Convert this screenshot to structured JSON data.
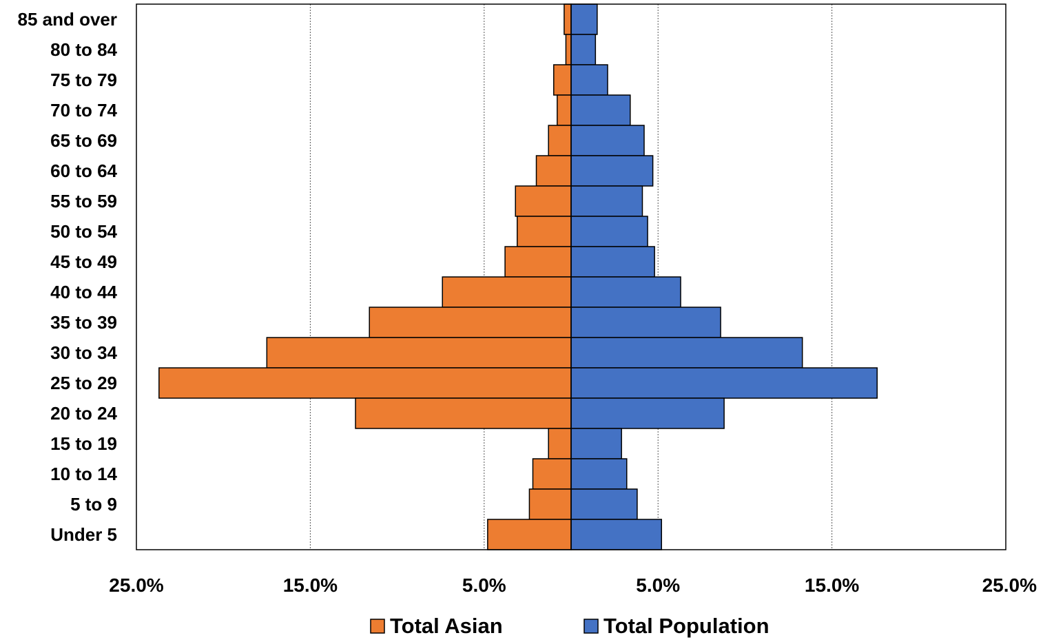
{
  "chart_data": {
    "type": "bar",
    "orientation": "horizontal",
    "layout": "population-pyramid",
    "categories": [
      "85 and over",
      "80 to 84",
      "75 to 79",
      "70 to 74",
      "65 to 69",
      "60 to 64",
      "55 to 59",
      "50 to 54",
      "45 to 49",
      "40 to 44",
      "35 to 39",
      "30 to 34",
      "25 to 29",
      "20 to 24",
      "15 to 19",
      "10 to 14",
      "5 to 9",
      "Under 5"
    ],
    "series": [
      {
        "name": "Total Asian",
        "color": "#ED7D31",
        "side": "left",
        "values": [
          0.4,
          0.3,
          1.0,
          0.8,
          1.3,
          2.0,
          3.2,
          3.1,
          3.8,
          7.4,
          11.6,
          17.5,
          23.7,
          12.4,
          1.3,
          2.2,
          2.4,
          4.8
        ]
      },
      {
        "name": "Total Population",
        "color": "#4472C4",
        "side": "right",
        "values": [
          1.5,
          1.4,
          2.1,
          3.4,
          4.2,
          4.7,
          4.1,
          4.4,
          4.8,
          6.3,
          8.6,
          13.3,
          17.6,
          8.8,
          2.9,
          3.2,
          3.8,
          5.2
        ]
      }
    ],
    "xlim": [
      -25,
      25
    ],
    "x_ticks": [
      -25,
      -15,
      -5,
      5,
      15,
      25
    ],
    "x_tick_labels": [
      "25.0%",
      "15.0%",
      "5.0%",
      "5.0%",
      "15.0%",
      "25.0%"
    ],
    "grid": "vertical dotted",
    "legend_position": "bottom",
    "title": "",
    "xlabel": "",
    "ylabel": ""
  }
}
